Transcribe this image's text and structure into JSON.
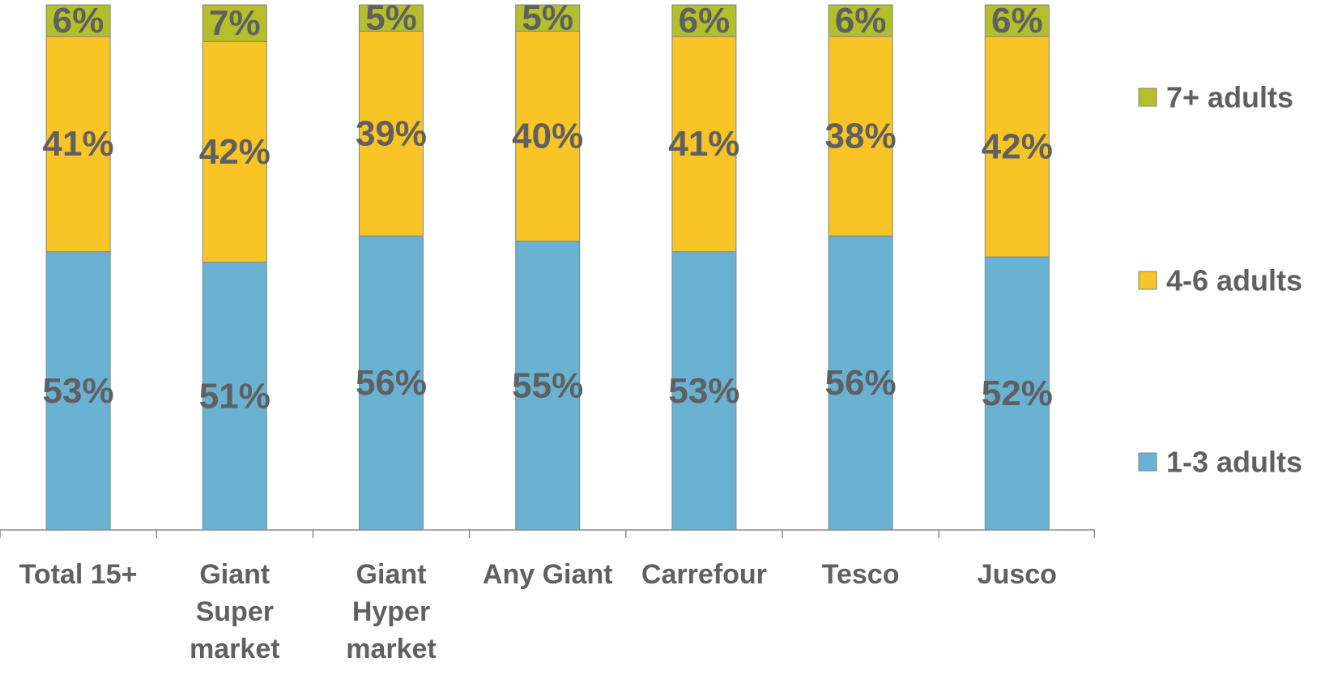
{
  "chart_data": {
    "type": "bar",
    "stacked": true,
    "normalized_percent": true,
    "categories": [
      [
        "Total 15+"
      ],
      [
        "Giant",
        "Super",
        "market"
      ],
      [
        "Giant",
        "Hyper",
        "market"
      ],
      [
        "Any Giant"
      ],
      [
        "Carrefour"
      ],
      [
        "Tesco"
      ],
      [
        "Jusco"
      ]
    ],
    "series": [
      {
        "name": "1-3 adults",
        "color": "#6ab2d2",
        "values": [
          53,
          51,
          56,
          55,
          53,
          56,
          52
        ],
        "labels": [
          "53%",
          "51%",
          "56%",
          "55%",
          "53%",
          "56%",
          "52%"
        ]
      },
      {
        "name": "4-6 adults",
        "color": "#f9c425",
        "values": [
          41,
          42,
          39,
          40,
          41,
          38,
          42
        ],
        "labels": [
          "41%",
          "42%",
          "39%",
          "40%",
          "41%",
          "38%",
          "42%"
        ]
      },
      {
        "name": "7+ adults",
        "color": "#b5be2b",
        "values": [
          6,
          7,
          5,
          5,
          6,
          6,
          6
        ],
        "labels": [
          "6%",
          "7%",
          "5%",
          "5%",
          "6%",
          "6%",
          "6%"
        ]
      }
    ],
    "ylim": [
      0,
      100
    ],
    "grid": false,
    "legend_position": "right",
    "legend_order": [
      "7+ adults",
      "4-6 adults",
      "1-3 adults"
    ]
  }
}
